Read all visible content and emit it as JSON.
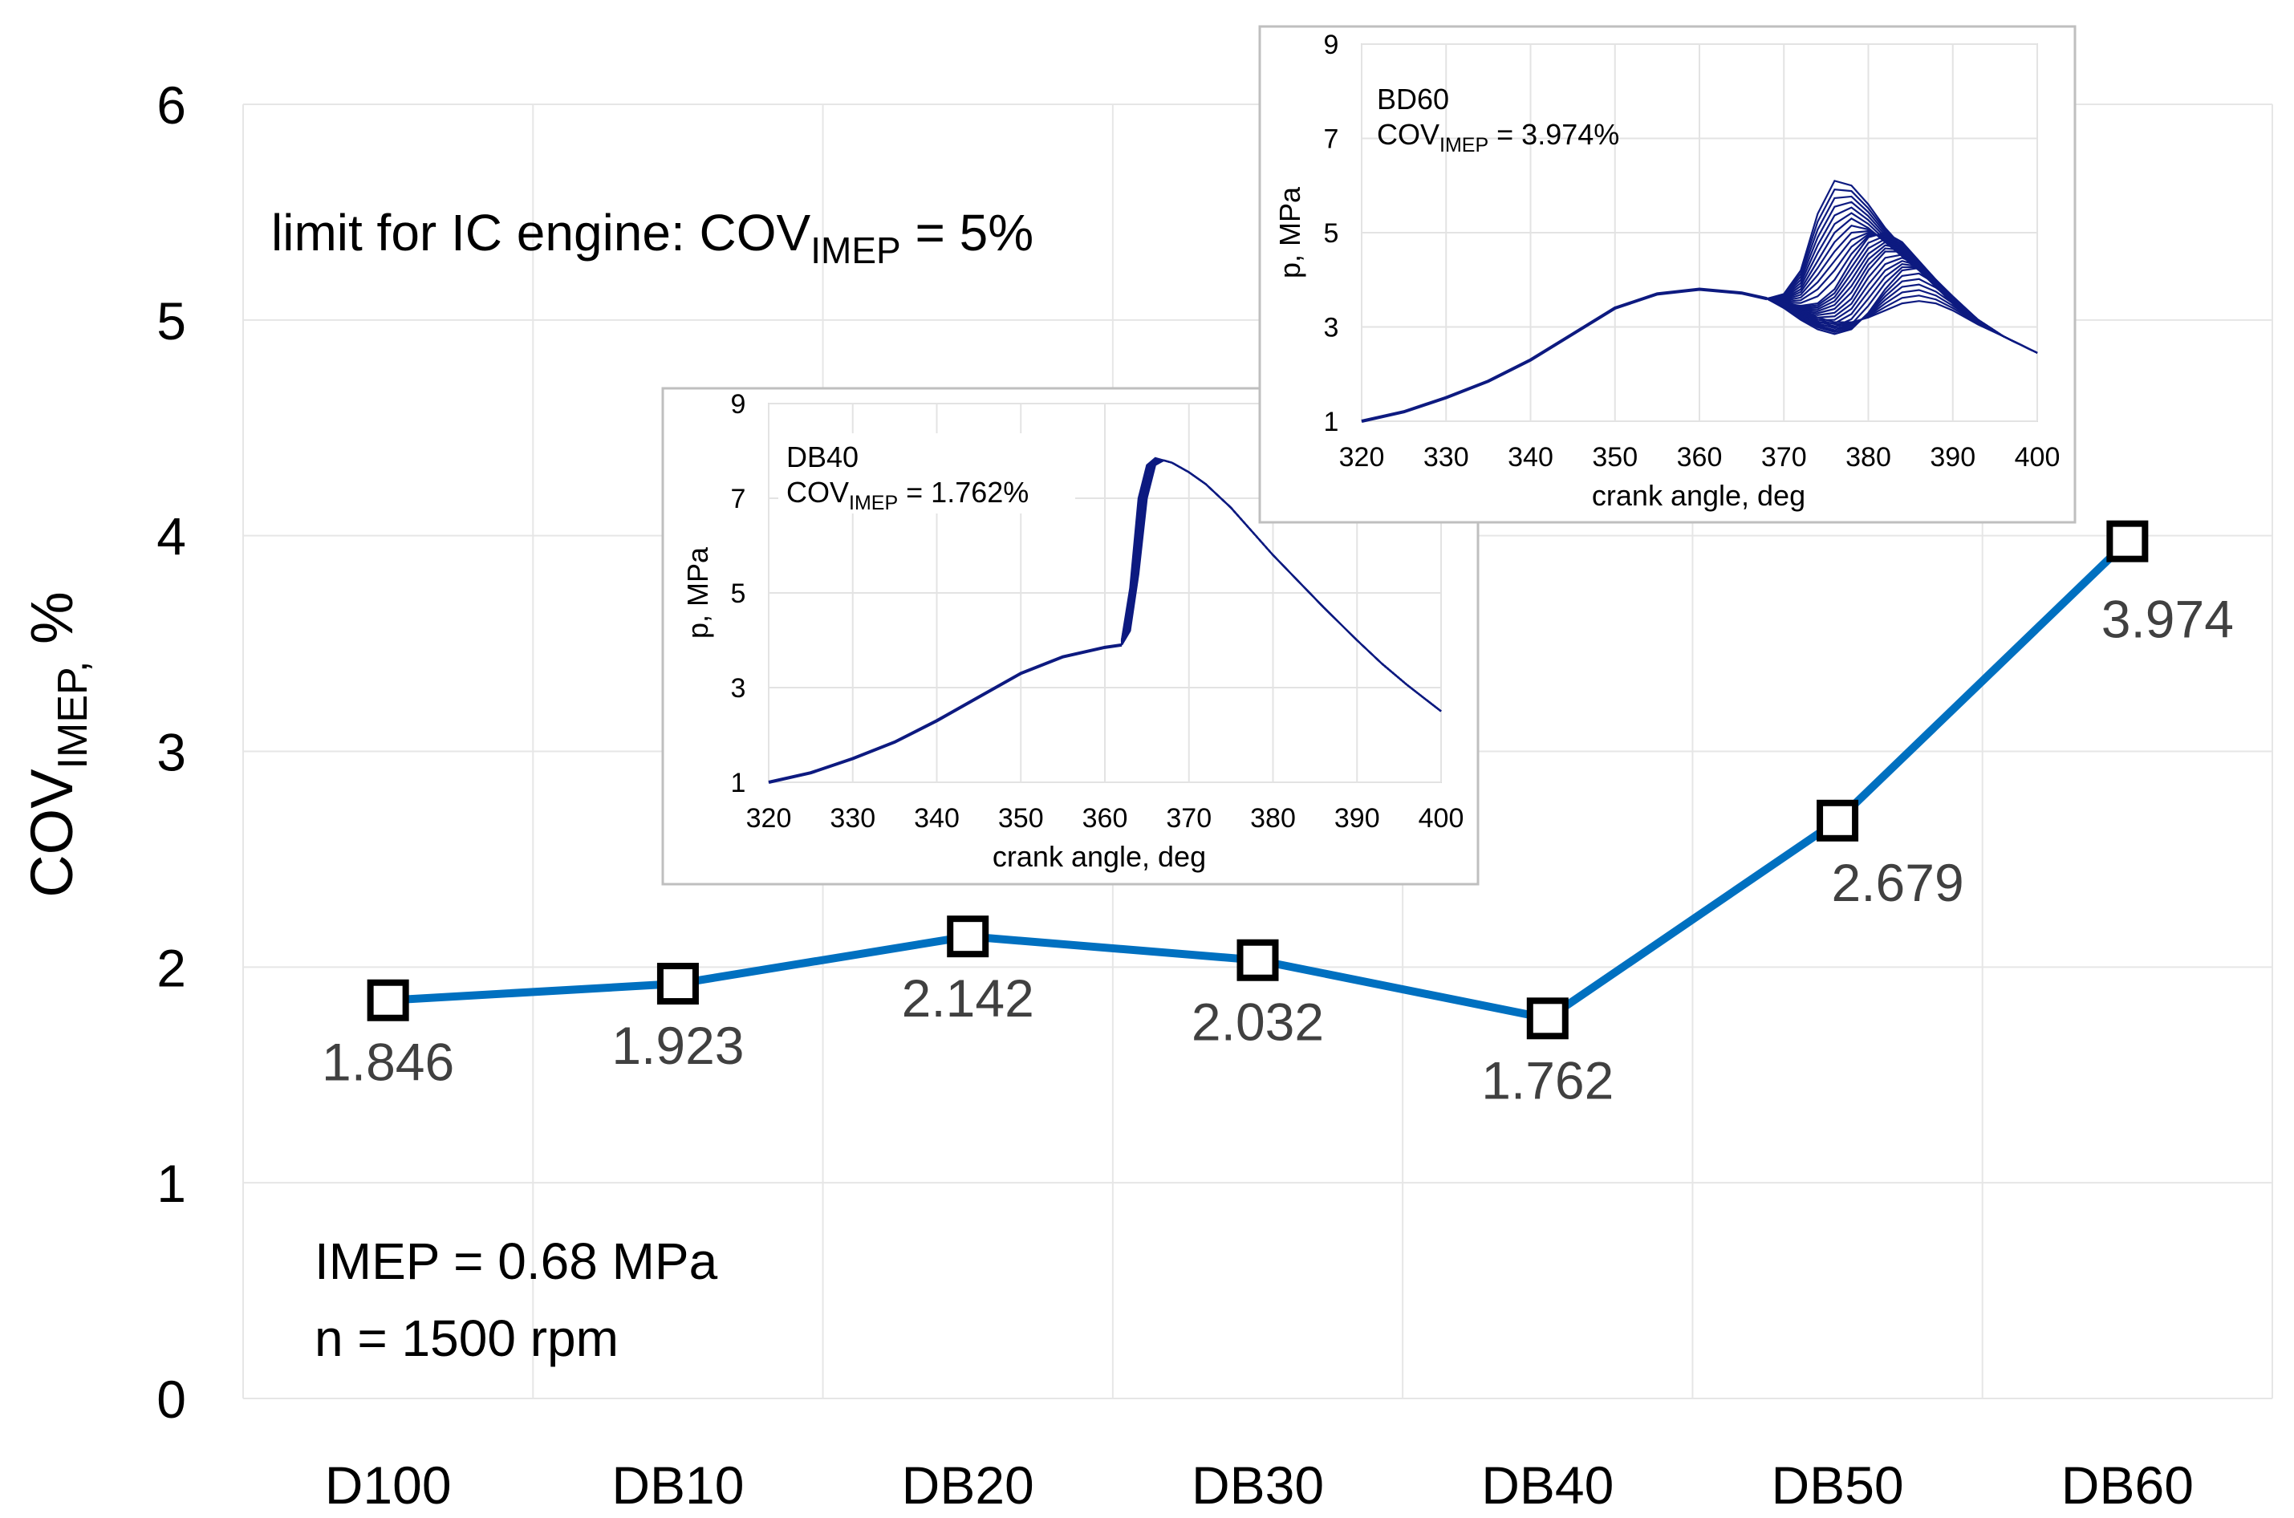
{
  "chart_data": [
    {
      "type": "line",
      "categories": [
        "D100",
        "DB10",
        "DB20",
        "DB30",
        "DB40",
        "DB50",
        "DB60"
      ],
      "values": [
        1.846,
        1.923,
        2.142,
        2.032,
        1.762,
        2.679,
        3.974
      ],
      "data_labels": [
        "1.846",
        "1.923",
        "2.142",
        "2.032",
        "1.762",
        "2.679",
        "3.974"
      ],
      "ylabel_main": "COV",
      "ylabel_sub": "IMEP,",
      "ylabel_tail": " %",
      "ylim": [
        0,
        6
      ],
      "yticks": [
        "0",
        "1",
        "2",
        "3",
        "4",
        "5",
        "6"
      ],
      "grid": true,
      "line_color": "#0070C0",
      "annotation_limit": {
        "main": "limit for IC engine: COV",
        "sub": "IMEP",
        "tail": " = 5%"
      },
      "annotation_conditions": [
        "IMEP = 0.68 MPa",
        "n = 1500 rpm"
      ]
    },
    {
      "type": "line",
      "name": "inset-db40",
      "title": "DB40",
      "cov_main": "COV",
      "cov_sub": "IMEP",
      "cov_tail": " = 1.762%",
      "xlabel": "crank angle, deg",
      "ylabel": "p, MPa",
      "xlim": [
        320,
        400
      ],
      "ylim": [
        1,
        9
      ],
      "xticks": [
        "320",
        "330",
        "340",
        "350",
        "360",
        "370",
        "380",
        "390",
        "400"
      ],
      "yticks": [
        "1",
        "3",
        "5",
        "7",
        "9"
      ],
      "line_color": "#0D1A80",
      "compression_curve": {
        "x": [
          320,
          325,
          330,
          335,
          340,
          345,
          350,
          355,
          360,
          362
        ],
        "y": [
          1.0,
          1.2,
          1.5,
          1.85,
          2.3,
          2.8,
          3.3,
          3.65,
          3.85,
          3.9
        ]
      },
      "cycle_curves": {
        "x": [
          362,
          363,
          364,
          365,
          366,
          367,
          368,
          370,
          372,
          375,
          378,
          380,
          383,
          386,
          390,
          393,
          396,
          400
        ],
        "y": [
          [
            3.9,
            4.2,
            5.4,
            7.0,
            7.7,
            7.8,
            7.75,
            7.55,
            7.3,
            6.8,
            6.2,
            5.8,
            5.25,
            4.7,
            4.0,
            3.5,
            3.05,
            2.5
          ],
          [
            3.95,
            4.6,
            6.2,
            7.5,
            7.8,
            7.8,
            7.75,
            7.55,
            7.3,
            6.8,
            6.2,
            5.8,
            5.25,
            4.7,
            4.0,
            3.5,
            3.05,
            2.5
          ],
          [
            4.0,
            5.1,
            7.0,
            7.7,
            7.85,
            7.8,
            7.75,
            7.55,
            7.3,
            6.8,
            6.2,
            5.8,
            5.25,
            4.7,
            4.0,
            3.5,
            3.05,
            2.5
          ]
        ]
      }
    },
    {
      "type": "line",
      "name": "inset-bd60",
      "title": "BD60",
      "cov_main": "COV",
      "cov_sub": "IMEP",
      "cov_tail": " = 3.974%",
      "xlabel": "crank angle, deg",
      "ylabel": "p, MPa",
      "xlim": [
        320,
        400
      ],
      "ylim": [
        1,
        9
      ],
      "xticks": [
        "320",
        "330",
        "340",
        "350",
        "360",
        "370",
        "380",
        "390",
        "400"
      ],
      "yticks": [
        "1",
        "3",
        "5",
        "7",
        "9"
      ],
      "line_color": "#0D1A80",
      "compression_curve": {
        "x": [
          320,
          325,
          330,
          335,
          340,
          345,
          350,
          355,
          360,
          365,
          368
        ],
        "y": [
          1.0,
          1.2,
          1.5,
          1.85,
          2.3,
          2.85,
          3.4,
          3.7,
          3.8,
          3.72,
          3.6
        ]
      },
      "cycle_curves": {
        "x": [
          368,
          370,
          372,
          374,
          376,
          378,
          380,
          382,
          384,
          386,
          388,
          390,
          393,
          396,
          400
        ],
        "y": [
          [
            3.6,
            3.7,
            4.2,
            5.4,
            6.1,
            6.0,
            5.6,
            5.1,
            4.7,
            4.3,
            3.9,
            3.5,
            3.1,
            2.8,
            2.45
          ],
          [
            3.6,
            3.6,
            3.8,
            4.4,
            5.0,
            5.3,
            5.1,
            4.8,
            4.5,
            4.2,
            3.85,
            3.5,
            3.1,
            2.8,
            2.45
          ],
          [
            3.6,
            3.5,
            3.45,
            3.5,
            3.8,
            4.4,
            4.9,
            5.0,
            4.8,
            4.4,
            4.0,
            3.6,
            3.15,
            2.8,
            2.45
          ],
          [
            3.6,
            3.45,
            3.3,
            3.25,
            3.3,
            3.6,
            4.2,
            4.6,
            4.6,
            4.35,
            4.0,
            3.6,
            3.15,
            2.8,
            2.45
          ],
          [
            3.6,
            3.4,
            3.15,
            2.95,
            2.85,
            2.95,
            3.3,
            3.8,
            4.2,
            4.25,
            4.0,
            3.65,
            3.15,
            2.8,
            2.45
          ],
          [
            3.6,
            3.5,
            3.35,
            3.2,
            3.1,
            3.1,
            3.2,
            3.35,
            3.5,
            3.55,
            3.5,
            3.35,
            3.05,
            2.8,
            2.45
          ]
        ]
      }
    }
  ]
}
